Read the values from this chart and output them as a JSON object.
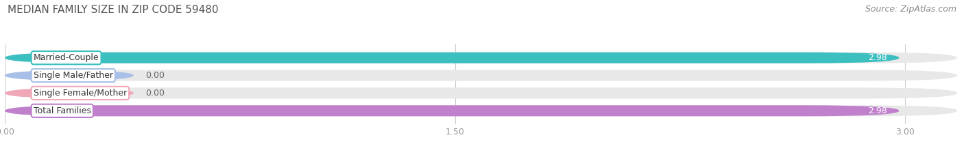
{
  "title": "MEDIAN FAMILY SIZE IN ZIP CODE 59480",
  "source": "Source: ZipAtlas.com",
  "categories": [
    "Married-Couple",
    "Single Male/Father",
    "Single Female/Mother",
    "Total Families"
  ],
  "values": [
    2.98,
    0.0,
    0.0,
    2.98
  ],
  "bar_colors": [
    "#3cbfbf",
    "#a8c0e8",
    "#f0a8b8",
    "#c080cc"
  ],
  "xlim_max": 3.18,
  "xticks": [
    0.0,
    1.5,
    3.0
  ],
  "xtick_labels": [
    "0.00",
    "1.50",
    "3.00"
  ],
  "background_color": "#ffffff",
  "bar_bg_color": "#e8e8e8",
  "title_fontsize": 11,
  "source_fontsize": 9,
  "tick_fontsize": 9,
  "label_fontsize": 9,
  "value_fontsize": 9,
  "bar_height": 0.62,
  "n_bars": 4
}
